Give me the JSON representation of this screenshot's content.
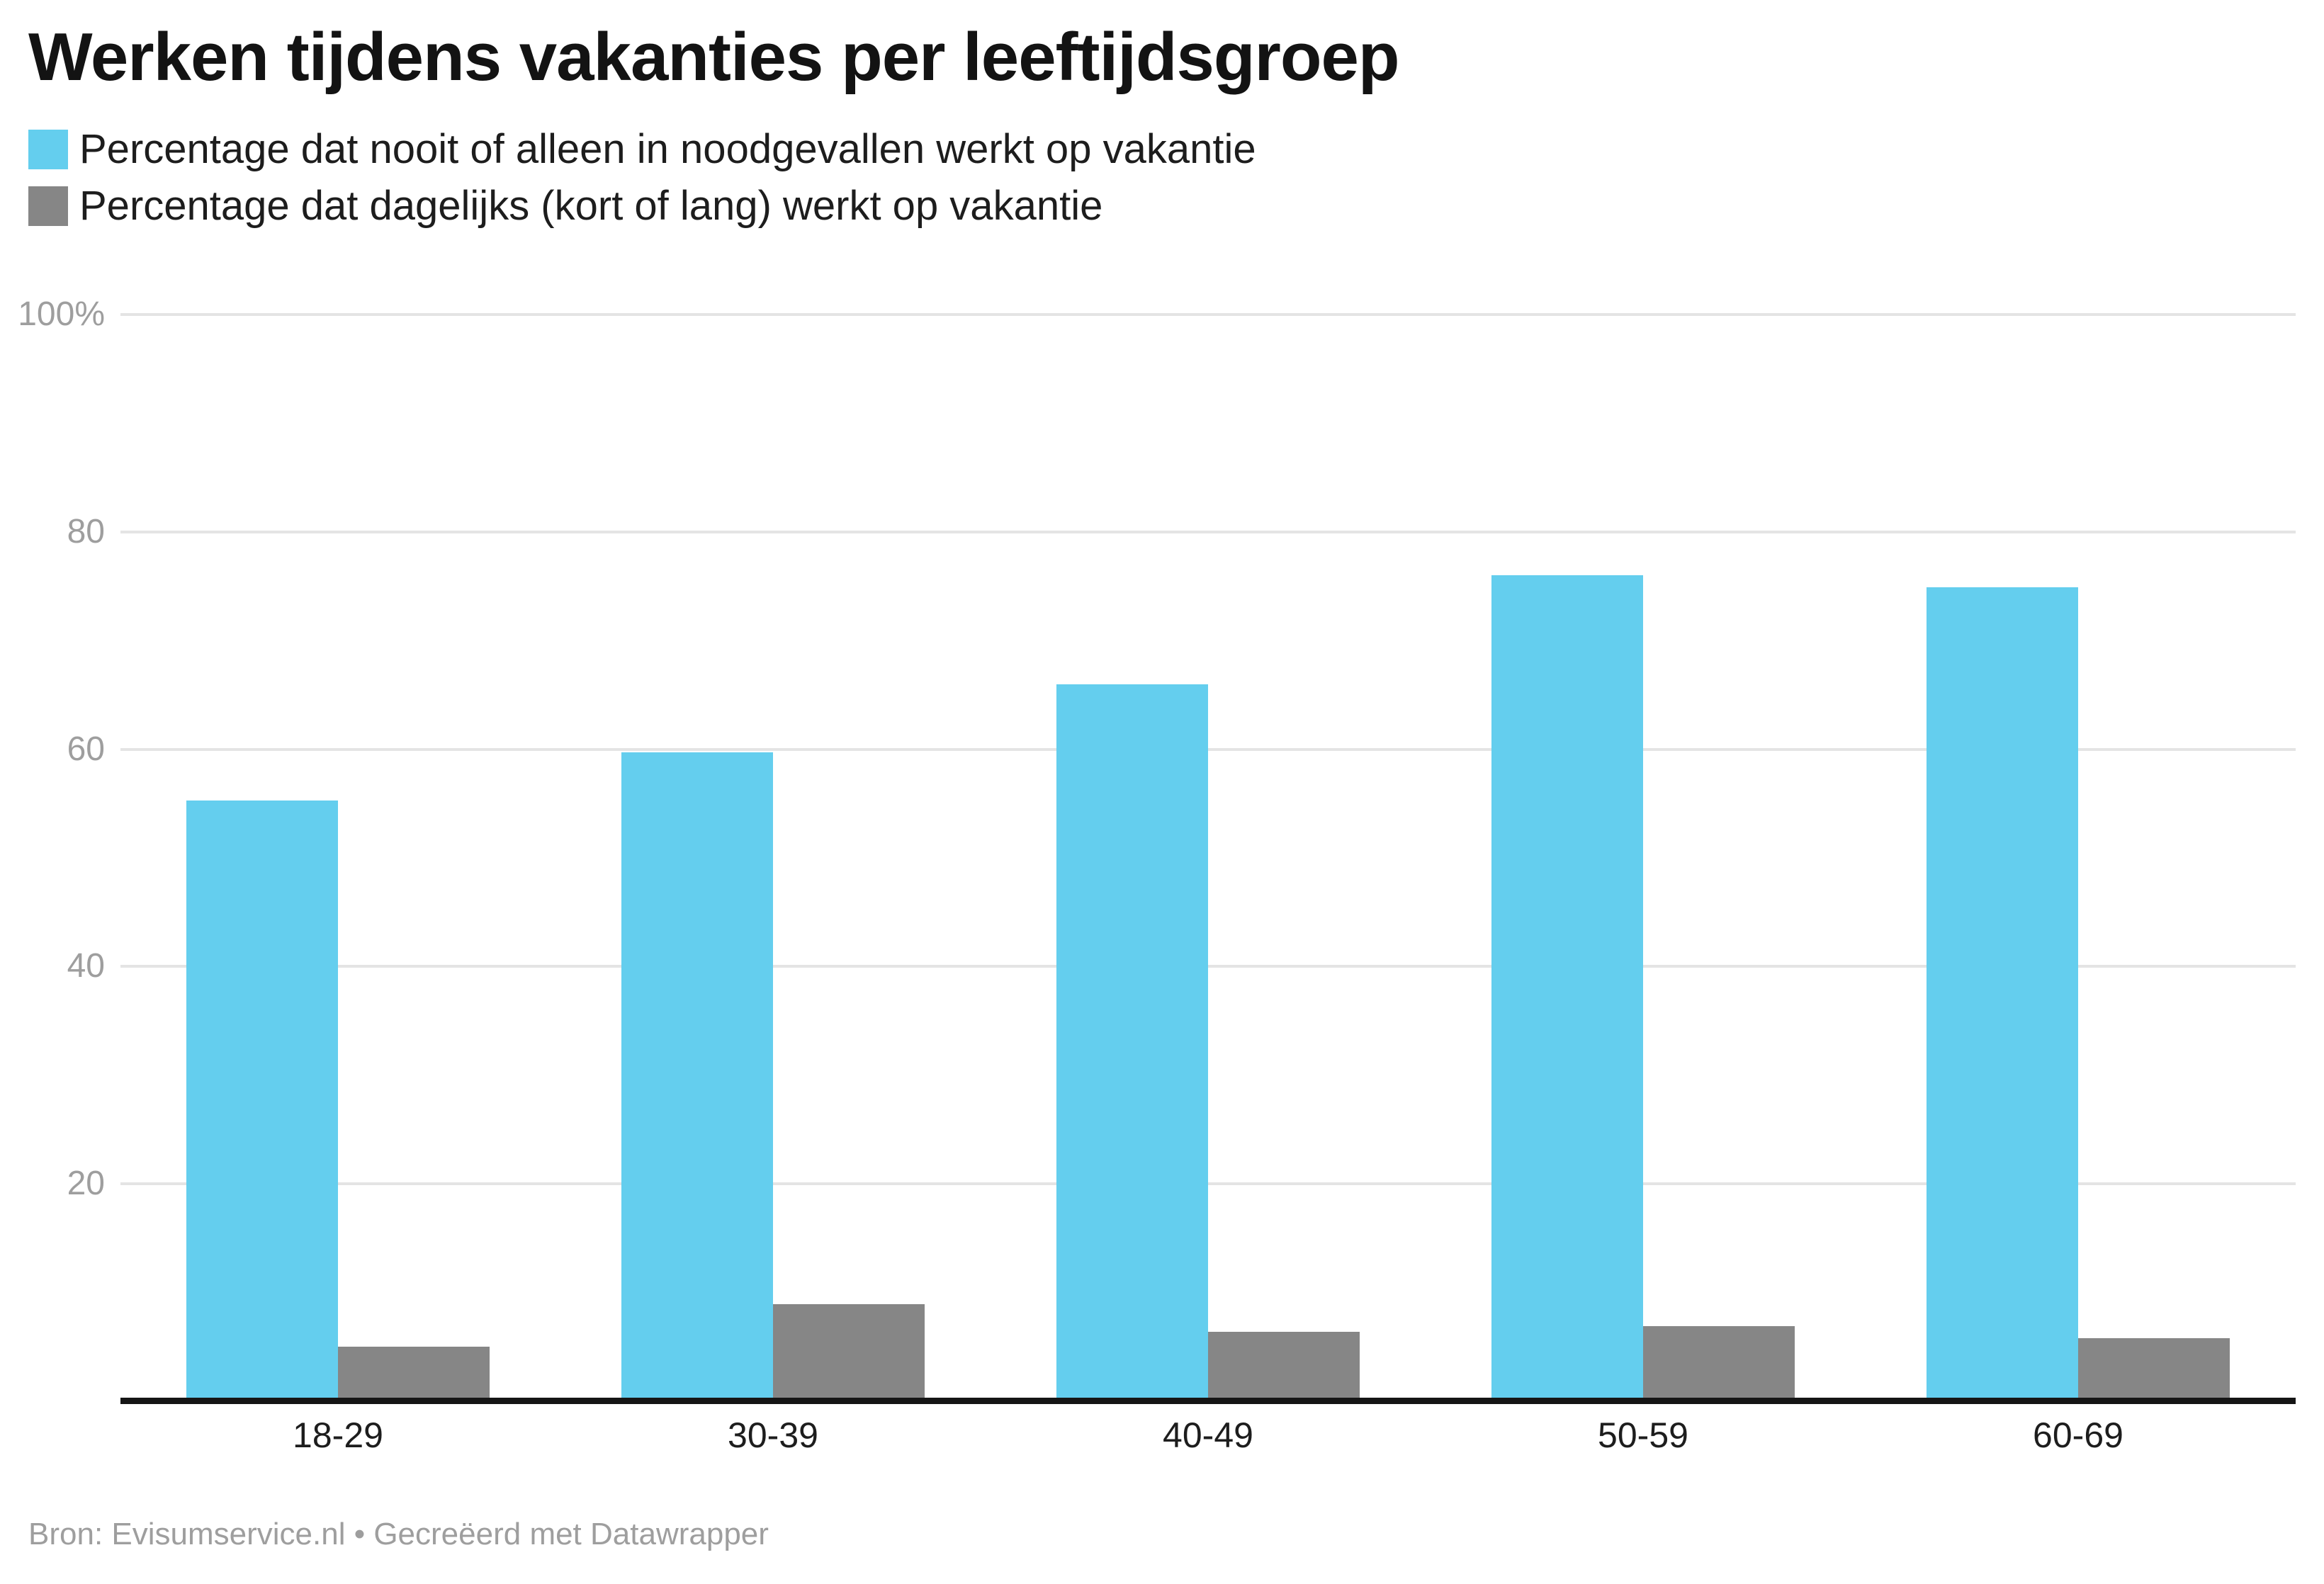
{
  "title": "Werken tijdens vakanties per leeftijdsgroep",
  "footer": {
    "text": "Bron: Evisumservice.nl • Gecreëerd met Datawrapper"
  },
  "colors": {
    "series_blue": "#64CEEE",
    "series_gray": "#868686",
    "gridline": "#e4e4e4",
    "axis_line": "#151515",
    "tick_text": "#9e9e9e",
    "label_text": "#1d1d1d"
  },
  "chart_data": {
    "type": "bar",
    "title": "Werken tijdens vakanties per leeftijdsgroep",
    "categories": [
      "18-29",
      "30-39",
      "40-49",
      "50-59",
      "60-69"
    ],
    "series": [
      {
        "name": "Percentage dat nooit of alleen in noodgevallen werkt op vakantie",
        "color": "#64CEEE",
        "values": [
          55.3,
          59.7,
          66.0,
          76.0,
          74.9
        ]
      },
      {
        "name": "Percentage dat dagelijks (kort of lang) werkt op vakantie",
        "color": "#868686",
        "values": [
          5.0,
          8.9,
          6.4,
          6.9,
          5.8
        ]
      }
    ],
    "xlabel": "",
    "ylabel": "",
    "ylim": [
      0,
      100
    ],
    "yticks": [
      {
        "value": 100,
        "label": "100%"
      },
      {
        "value": 80,
        "label": "80"
      },
      {
        "value": 60,
        "label": "60"
      },
      {
        "value": 40,
        "label": "40"
      },
      {
        "value": 20,
        "label": "20"
      }
    ],
    "grid": true,
    "legend_position": "top-left"
  }
}
